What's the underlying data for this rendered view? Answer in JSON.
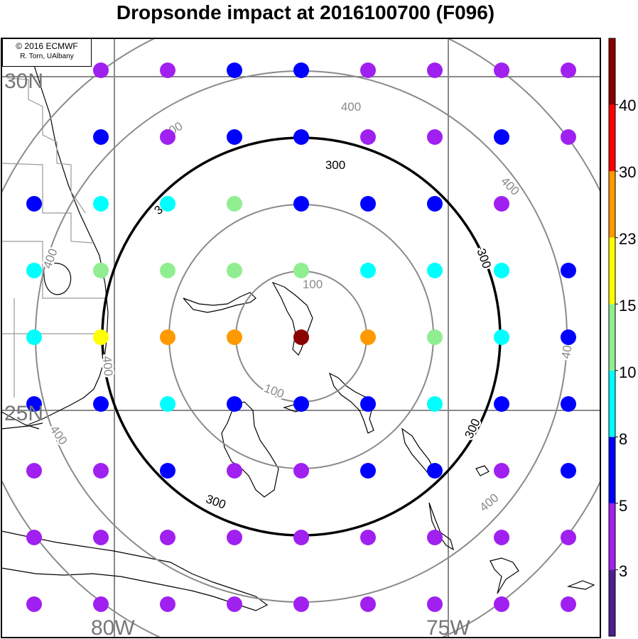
{
  "title": "Dropsonde impact at 2016100700 (F096)",
  "credit": {
    "line1": "© 2016 ECMWF",
    "line2": "R. Torn, UAlbany"
  },
  "grid": {
    "lat_labels": [
      "30N",
      "25N"
    ],
    "lon_labels": [
      "80W",
      "75W"
    ]
  },
  "distance_rings": {
    "labels": [
      "100",
      "100",
      "300",
      "300",
      "300",
      "300",
      "300",
      "400",
      "400",
      "400",
      "400",
      "400",
      "400",
      "400",
      "400"
    ],
    "highlight_value": "300"
  },
  "colorbar": {
    "tick_labels": [
      "40",
      "30",
      "23",
      "15",
      "10",
      "8",
      "5",
      "3"
    ],
    "colors": [
      "#4b1f8f",
      "#a020f0",
      "#0000ff",
      "#00ffff",
      "#90ee90",
      "#ffff00",
      "#ff9900",
      "#ff0000",
      "#8b0000"
    ]
  },
  "dot_levels": [
    [
      4,
      4,
      5,
      5,
      4,
      4,
      4,
      4
    ],
    [
      5,
      4,
      5,
      5,
      4,
      4,
      5,
      4
    ],
    [
      5,
      8,
      8,
      12,
      5,
      5,
      5,
      4
    ],
    [
      8,
      12,
      12,
      12,
      12,
      8,
      8,
      8,
      5
    ],
    [
      8,
      18,
      27,
      27,
      48,
      27,
      12,
      8,
      5
    ],
    [
      5,
      5,
      8,
      5,
      5,
      5,
      8,
      5,
      5
    ],
    [
      4,
      4,
      5,
      4,
      4,
      5,
      5,
      4,
      5
    ],
    [
      3,
      3,
      3,
      3,
      3,
      4,
      4,
      4,
      4
    ],
    [
      3,
      3,
      3,
      3,
      3,
      3,
      3,
      3,
      3
    ]
  ]
}
